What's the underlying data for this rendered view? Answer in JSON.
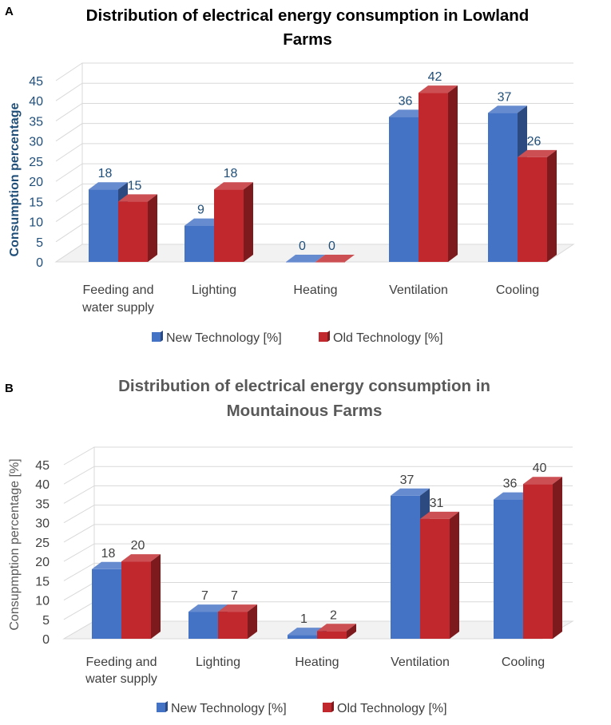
{
  "chart_data": [
    {
      "type": "bar",
      "panel": "A",
      "title": "Distribution of electrical energy consumption in Lowland Farms",
      "title_lines": [
        "Distribution of electrical energy consumption in Lowland",
        "Farms"
      ],
      "title_color": "#000000",
      "xlabel": "",
      "ylabel": "Consumption percentage",
      "ylabel_color": "#1f4e79",
      "tick_color": "#1f4e79",
      "label_color": "#1f4e79",
      "ylim": [
        0,
        45
      ],
      "yticks": [
        0,
        5,
        10,
        15,
        20,
        25,
        30,
        35,
        40,
        45
      ],
      "grid": true,
      "legend_position": "bottom",
      "categories": [
        [
          "Feeding and",
          "water supply"
        ],
        [
          "Lighting"
        ],
        [
          "Heating"
        ],
        [
          "Ventilation"
        ],
        [
          "Cooling"
        ]
      ],
      "series": [
        {
          "name": "New Technology [%]",
          "values": [
            18,
            9,
            0,
            36,
            37
          ],
          "color": "#4472c4"
        },
        {
          "name": "Old Technology [%]",
          "values": [
            15,
            18,
            0,
            42,
            26
          ],
          "color": "#c0282d"
        }
      ]
    },
    {
      "type": "bar",
      "panel": "B",
      "title": "Distribution of electrical energy consumption in Mountainous Farms",
      "title_lines": [
        "Distribution of electrical energy consumption in",
        "Mountainous Farms"
      ],
      "title_color": "#595959",
      "xlabel": "",
      "ylabel": "Consupmption percentage [%]",
      "ylabel_color": "#595959",
      "tick_color": "#404040",
      "label_color": "#404040",
      "ylim": [
        0,
        45
      ],
      "yticks": [
        0,
        5,
        10,
        15,
        20,
        25,
        30,
        35,
        40,
        45
      ],
      "grid": true,
      "legend_position": "bottom",
      "categories": [
        [
          "Feeding and",
          "water supply"
        ],
        [
          "Lighting"
        ],
        [
          "Heating"
        ],
        [
          "Ventilation"
        ],
        [
          "Cooling"
        ]
      ],
      "series": [
        {
          "name": "New Technology [%]",
          "values": [
            18,
            7,
            1,
            37,
            36
          ],
          "color": "#4472c4"
        },
        {
          "name": "Old Technology [%]",
          "values": [
            20,
            7,
            2,
            31,
            40
          ],
          "color": "#c0282d"
        }
      ]
    }
  ]
}
